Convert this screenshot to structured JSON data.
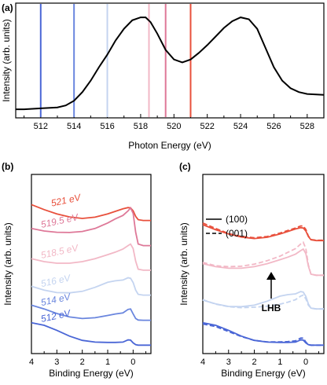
{
  "colors": {
    "512": "#4a66d6",
    "514": "#6a86de",
    "516": "#c4d4f0",
    "518.5": "#f2b8c6",
    "519.5": "#de7898",
    "521": "#e8503c",
    "xas": "#000000"
  },
  "chart_data": [
    {
      "type": "line",
      "panel": "(a)",
      "xlabel": "Photon Energy (eV)",
      "ylabel": "Intensity (arb. units)",
      "xlim": [
        510.5,
        529
      ],
      "ylim": [
        0,
        1.05
      ],
      "xticks": [
        "512",
        "514",
        "516",
        "518",
        "520",
        "522",
        "524",
        "526",
        "528"
      ],
      "series": [
        {
          "color": "#000000",
          "x": [
            510.5,
            511,
            512,
            513,
            513.5,
            514,
            514.5,
            515,
            515.5,
            516,
            516.5,
            517,
            517.5,
            518,
            518.3,
            518.6,
            519,
            519.5,
            520,
            520.5,
            521,
            521.5,
            522,
            522.5,
            523,
            523.5,
            524,
            524.5,
            525,
            525.5,
            526,
            526.5,
            527,
            527.5,
            528,
            529
          ],
          "y": [
            0.04,
            0.04,
            0.05,
            0.06,
            0.08,
            0.13,
            0.22,
            0.34,
            0.48,
            0.61,
            0.76,
            0.88,
            0.97,
            1.0,
            1.0,
            0.95,
            0.83,
            0.66,
            0.56,
            0.53,
            0.56,
            0.63,
            0.71,
            0.8,
            0.89,
            0.96,
            1.0,
            0.98,
            0.88,
            0.68,
            0.48,
            0.34,
            0.26,
            0.22,
            0.2,
            0.19
          ]
        }
      ],
      "markers": [
        {
          "x": 512,
          "color": "#4a66d6"
        },
        {
          "x": 514,
          "color": "#6a86de"
        },
        {
          "x": 516,
          "color": "#c4d4f0"
        },
        {
          "x": 518.5,
          "color": "#f2b8c6"
        },
        {
          "x": 519.5,
          "color": "#de7898"
        },
        {
          "x": 521,
          "color": "#e8503c"
        }
      ]
    },
    {
      "type": "line",
      "panel": "(b)",
      "xlabel": "Binding Energy (eV)",
      "ylabel": "Intensity (arb. units)",
      "xlim": [
        4,
        -0.7
      ],
      "xticks": [
        "4",
        "3",
        "2",
        "1",
        "0"
      ],
      "series": [
        {
          "name": "521 eV",
          "color": "#e8503c",
          "offset": 5,
          "x": [
            4,
            3.5,
            3,
            2.5,
            2,
            1.5,
            1,
            0.7,
            0.4,
            0.2,
            0.1,
            0.0,
            -0.1,
            -0.2,
            -0.4,
            -0.7
          ],
          "y": [
            0.55,
            0.35,
            0.18,
            0.06,
            0.0,
            0.05,
            0.18,
            0.28,
            0.38,
            0.43,
            0.42,
            0.3,
            0.08,
            -0.05,
            -0.08,
            -0.08
          ]
        },
        {
          "name": "519.5 eV",
          "color": "#de7898",
          "offset": 4,
          "x": [
            4,
            3.5,
            3,
            2.5,
            2,
            1.5,
            1,
            0.7,
            0.4,
            0.2,
            0.1,
            0.0,
            -0.1,
            -0.2,
            -0.4,
            -0.7
          ],
          "y": [
            0.6,
            0.5,
            0.45,
            0.44,
            0.48,
            0.6,
            0.82,
            0.98,
            1.12,
            1.3,
            1.42,
            1.2,
            0.45,
            -0.02,
            -0.08,
            -0.08
          ]
        },
        {
          "name": "518.5 eV",
          "color": "#f2b8c6",
          "offset": 3,
          "x": [
            4,
            3.5,
            3,
            2.5,
            2,
            1.5,
            1,
            0.7,
            0.4,
            0.2,
            0.1,
            0.0,
            -0.1,
            -0.2,
            -0.4,
            -0.7
          ],
          "y": [
            0.4,
            0.28,
            0.22,
            0.22,
            0.28,
            0.4,
            0.56,
            0.66,
            0.78,
            0.92,
            0.98,
            0.8,
            0.3,
            -0.02,
            -0.06,
            -0.06
          ]
        },
        {
          "name": "516 eV",
          "color": "#c4d4f0",
          "offset": 2,
          "x": [
            4,
            3.5,
            3,
            2.5,
            2,
            1.5,
            1,
            0.7,
            0.4,
            0.2,
            0.1,
            0.0,
            -0.1,
            -0.2,
            -0.4,
            -0.7
          ],
          "y": [
            0.3,
            0.15,
            0.05,
            0.04,
            0.1,
            0.26,
            0.46,
            0.52,
            0.55,
            0.64,
            0.62,
            0.45,
            0.15,
            -0.02,
            -0.05,
            -0.05
          ]
        },
        {
          "name": "514 eV",
          "color": "#6a86de",
          "offset": 1,
          "x": [
            4,
            3.5,
            3,
            2.5,
            2,
            1.5,
            1,
            0.7,
            0.4,
            0.2,
            0.1,
            0.0,
            -0.1,
            -0.2,
            -0.4,
            -0.7
          ],
          "y": [
            0.55,
            0.4,
            0.22,
            0.08,
            0.02,
            0.05,
            0.14,
            0.2,
            0.24,
            0.38,
            0.4,
            0.2,
            0.02,
            -0.04,
            -0.05,
            -0.05
          ]
        },
        {
          "name": "512 eV",
          "color": "#4a66d6",
          "offset": 0,
          "x": [
            4,
            3.5,
            3,
            2.5,
            2,
            1.5,
            1,
            0.7,
            0.4,
            0.2,
            0.1,
            0.0,
            -0.1,
            -0.2,
            -0.4,
            -0.7
          ],
          "y": [
            0.85,
            0.75,
            0.55,
            0.32,
            0.15,
            0.08,
            0.07,
            0.07,
            0.08,
            0.17,
            0.16,
            0.05,
            -0.02,
            -0.04,
            -0.04,
            -0.04
          ]
        }
      ]
    },
    {
      "type": "line",
      "panel": "(c)",
      "xlabel": "Binding Energy (eV)",
      "ylabel": "Intensity (arb. units)",
      "xlim": [
        4,
        -0.7
      ],
      "xticks": [
        "4",
        "3",
        "2",
        "1",
        "0"
      ],
      "legend": [
        {
          "label": "(100)",
          "style": "solid"
        },
        {
          "label": "(001)",
          "style": "dashed"
        }
      ],
      "annotation": "LHB",
      "series": [
        {
          "color": "#e8503c",
          "style": "solid",
          "offset": 4.2,
          "x": [
            4,
            3.5,
            3,
            2.5,
            2,
            1.5,
            1,
            0.7,
            0.4,
            0.2,
            0.1,
            0.0,
            -0.1,
            -0.2,
            -0.4,
            -0.7
          ],
          "y": [
            0.55,
            0.35,
            0.18,
            0.06,
            0.0,
            0.05,
            0.18,
            0.28,
            0.38,
            0.43,
            0.42,
            0.3,
            0.08,
            -0.05,
            -0.08,
            -0.08
          ]
        },
        {
          "color": "#e8503c",
          "style": "dashed",
          "offset": 4.2,
          "x": [
            4,
            3.5,
            3,
            2.5,
            2,
            1.5,
            1,
            0.7,
            0.4,
            0.2,
            0.1,
            0.0,
            -0.1,
            -0.2,
            -0.4,
            -0.7
          ],
          "y": [
            0.62,
            0.4,
            0.2,
            0.08,
            0.03,
            0.08,
            0.22,
            0.32,
            0.42,
            0.5,
            0.5,
            0.36,
            0.1,
            -0.04,
            -0.07,
            -0.07
          ]
        },
        {
          "color": "#f2b8c6",
          "style": "solid",
          "offset": 2.8,
          "x": [
            4,
            3.5,
            3,
            2.5,
            2,
            1.5,
            1,
            0.7,
            0.4,
            0.2,
            0.1,
            0.0,
            -0.1,
            -0.2,
            -0.4,
            -0.7
          ],
          "y": [
            0.4,
            0.28,
            0.22,
            0.22,
            0.28,
            0.4,
            0.56,
            0.66,
            0.78,
            0.92,
            0.98,
            0.8,
            0.3,
            -0.02,
            -0.06,
            -0.06
          ]
        },
        {
          "color": "#f2b8c6",
          "style": "dashed",
          "offset": 2.8,
          "x": [
            4,
            3.5,
            3,
            2.5,
            2,
            1.5,
            1,
            0.7,
            0.4,
            0.2,
            0.1,
            0.0,
            -0.1,
            -0.2,
            -0.4,
            -0.7
          ],
          "y": [
            0.45,
            0.32,
            0.28,
            0.3,
            0.38,
            0.52,
            0.7,
            0.85,
            1.0,
            1.18,
            1.25,
            1.0,
            0.35,
            -0.02,
            -0.06,
            -0.06
          ]
        },
        {
          "color": "#c4d4f0",
          "style": "solid",
          "offset": 1.45,
          "x": [
            4,
            3.5,
            3,
            2.5,
            2,
            1.5,
            1,
            0.7,
            0.4,
            0.2,
            0.1,
            0.0,
            -0.1,
            -0.2,
            -0.4,
            -0.7
          ],
          "y": [
            0.3,
            0.15,
            0.05,
            0.04,
            0.1,
            0.26,
            0.46,
            0.52,
            0.55,
            0.64,
            0.62,
            0.45,
            0.15,
            -0.02,
            -0.05,
            -0.05
          ]
        },
        {
          "color": "#c4d4f0",
          "style": "dashed",
          "offset": 1.45,
          "x": [
            4,
            3.5,
            3,
            2.5,
            2,
            1.5,
            1,
            0.7,
            0.4,
            0.2,
            0.1,
            0.0,
            -0.1,
            -0.2,
            -0.4,
            -0.7
          ],
          "y": [
            0.32,
            0.14,
            0.04,
            0.0,
            0.02,
            0.06,
            0.14,
            0.22,
            0.32,
            0.46,
            0.5,
            0.35,
            0.1,
            -0.02,
            -0.05,
            -0.05
          ]
        },
        {
          "color": "#4a66d6",
          "style": "solid",
          "offset": 0,
          "x": [
            4,
            3.5,
            3,
            2.5,
            2,
            1.5,
            1,
            0.7,
            0.4,
            0.2,
            0.1,
            0.0,
            -0.1,
            -0.2,
            -0.4,
            -0.7
          ],
          "y": [
            0.85,
            0.75,
            0.55,
            0.32,
            0.15,
            0.08,
            0.07,
            0.07,
            0.08,
            0.17,
            0.16,
            0.05,
            -0.02,
            -0.04,
            -0.04,
            -0.04
          ]
        },
        {
          "color": "#4a66d6",
          "style": "dashed",
          "offset": 0,
          "x": [
            4,
            3.5,
            3,
            2.5,
            2,
            1.5,
            1,
            0.7,
            0.4,
            0.2,
            0.1,
            0.0,
            -0.1,
            -0.2,
            -0.4,
            -0.7
          ],
          "y": [
            0.8,
            0.7,
            0.5,
            0.3,
            0.15,
            0.09,
            0.09,
            0.1,
            0.13,
            0.24,
            0.24,
            0.08,
            -0.02,
            -0.04,
            -0.04,
            -0.04
          ]
        }
      ]
    }
  ]
}
